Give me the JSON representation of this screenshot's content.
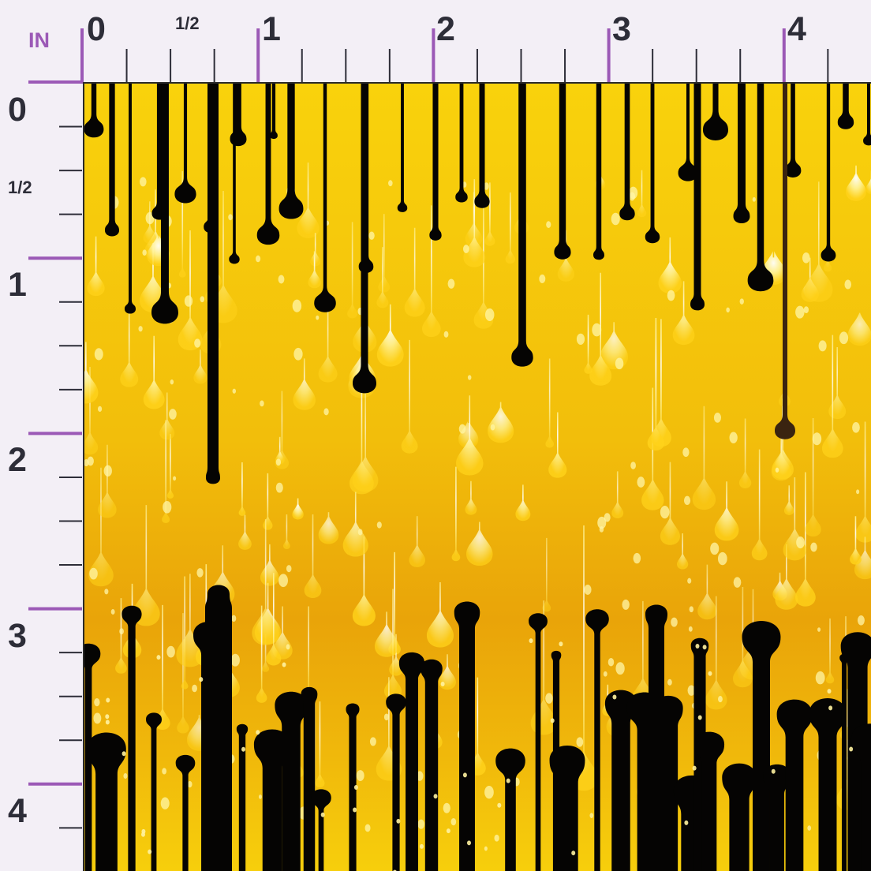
{
  "ruler": {
    "unit": "IN",
    "top_labels": [
      "0",
      "1/2",
      "1",
      "2",
      "3",
      "4"
    ],
    "left_labels": [
      "0",
      "1/2",
      "1",
      "2",
      "3",
      "4"
    ],
    "accent_color": "#9b59b6",
    "label_color": "#2d2d38"
  },
  "swatch": {
    "pattern": "dripping-paint",
    "colors": {
      "top": "#f9d20c",
      "middle": "#e9a409",
      "bottom": "#f7cf0c",
      "drip_black": "#050403",
      "drip_light": "#fff5a8"
    }
  }
}
